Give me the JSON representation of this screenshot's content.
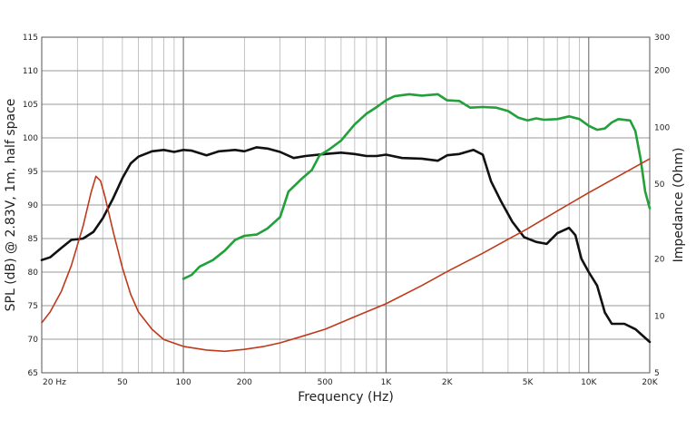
{
  "chart_data": {
    "type": "line",
    "title": "",
    "xlabel": "Frequency (Hz)",
    "ylabel": "SPL (dB) @ 2.83V, 1m, half space",
    "y2label": "Impedance (Ohm)",
    "xscale": "log",
    "y2scale": "log",
    "xlim": [
      20,
      20000
    ],
    "ylim": [
      65,
      115
    ],
    "y2lim": [
      5,
      300
    ],
    "grid": true,
    "legend": "none",
    "x_ticks": [
      {
        "value": 20,
        "label": "20  Hz"
      },
      {
        "value": 50,
        "label": "50"
      },
      {
        "value": 100,
        "label": "100"
      },
      {
        "value": 200,
        "label": "200"
      },
      {
        "value": 500,
        "label": "500"
      },
      {
        "value": 1000,
        "label": "1K"
      },
      {
        "value": 2000,
        "label": "2K"
      },
      {
        "value": 5000,
        "label": "5K"
      },
      {
        "value": 10000,
        "label": "10K"
      },
      {
        "value": 20000,
        "label": "20K"
      }
    ],
    "y_ticks": [
      {
        "value": 65,
        "label": "65"
      },
      {
        "value": 70,
        "label": "70"
      },
      {
        "value": 75,
        "label": "75"
      },
      {
        "value": 80,
        "label": "80"
      },
      {
        "value": 85,
        "label": "85"
      },
      {
        "value": 90,
        "label": "90"
      },
      {
        "value": 95,
        "label": "95"
      },
      {
        "value": 100,
        "label": "100"
      },
      {
        "value": 105,
        "label": "105"
      },
      {
        "value": 110,
        "label": "110"
      },
      {
        "value": 115,
        "label": "115"
      }
    ],
    "y2_ticks": [
      {
        "value": 5,
        "label": "5"
      },
      {
        "value": 10,
        "label": "10"
      },
      {
        "value": 20,
        "label": "20"
      },
      {
        "value": 50,
        "label": "50"
      },
      {
        "value": 100,
        "label": "100"
      },
      {
        "value": 200,
        "label": "200"
      },
      {
        "value": 300,
        "label": "300"
      }
    ],
    "series": [
      {
        "color": "#111111",
        "axis": "left",
        "points": [
          [
            20,
            81.8
          ],
          [
            22,
            82.2
          ],
          [
            25,
            83.6
          ],
          [
            28,
            84.8
          ],
          [
            32,
            85.0
          ],
          [
            36,
            86.0
          ],
          [
            40,
            88.0
          ],
          [
            45,
            91.0
          ],
          [
            50,
            94.0
          ],
          [
            55,
            96.2
          ],
          [
            60,
            97.2
          ],
          [
            70,
            98.0
          ],
          [
            80,
            98.2
          ],
          [
            90,
            97.9
          ],
          [
            100,
            98.2
          ],
          [
            110,
            98.1
          ],
          [
            130,
            97.4
          ],
          [
            150,
            98.0
          ],
          [
            180,
            98.2
          ],
          [
            200,
            98.0
          ],
          [
            230,
            98.6
          ],
          [
            260,
            98.4
          ],
          [
            300,
            97.9
          ],
          [
            350,
            97.0
          ],
          [
            400,
            97.3
          ],
          [
            500,
            97.6
          ],
          [
            600,
            97.8
          ],
          [
            700,
            97.6
          ],
          [
            800,
            97.3
          ],
          [
            900,
            97.3
          ],
          [
            1000,
            97.5
          ],
          [
            1200,
            97.0
          ],
          [
            1500,
            96.9
          ],
          [
            1800,
            96.6
          ],
          [
            2000,
            97.4
          ],
          [
            2300,
            97.6
          ],
          [
            2700,
            98.2
          ],
          [
            3000,
            97.5
          ],
          [
            3300,
            93.5
          ],
          [
            3700,
            90.5
          ],
          [
            4200,
            87.5
          ],
          [
            4800,
            85.2
          ],
          [
            5500,
            84.5
          ],
          [
            6200,
            84.2
          ],
          [
            7000,
            85.8
          ],
          [
            8000,
            86.6
          ],
          [
            8600,
            85.5
          ],
          [
            9200,
            82.0
          ],
          [
            10000,
            80.0
          ],
          [
            11000,
            78.0
          ],
          [
            12000,
            74.0
          ],
          [
            13000,
            72.3
          ],
          [
            15000,
            72.3
          ],
          [
            17000,
            71.5
          ],
          [
            20000,
            69.6
          ]
        ]
      },
      {
        "color": "#22a03a",
        "axis": "left",
        "points": [
          [
            100,
            79.0
          ],
          [
            110,
            79.6
          ],
          [
            120,
            80.8
          ],
          [
            140,
            81.8
          ],
          [
            160,
            83.2
          ],
          [
            180,
            84.8
          ],
          [
            200,
            85.4
          ],
          [
            230,
            85.6
          ],
          [
            260,
            86.5
          ],
          [
            300,
            88.2
          ],
          [
            330,
            92.0
          ],
          [
            380,
            93.8
          ],
          [
            430,
            95.2
          ],
          [
            470,
            97.4
          ],
          [
            520,
            98.2
          ],
          [
            600,
            99.6
          ],
          [
            700,
            102.0
          ],
          [
            800,
            103.6
          ],
          [
            900,
            104.6
          ],
          [
            1000,
            105.6
          ],
          [
            1100,
            106.2
          ],
          [
            1300,
            106.5
          ],
          [
            1500,
            106.3
          ],
          [
            1800,
            106.5
          ],
          [
            2000,
            105.6
          ],
          [
            2300,
            105.5
          ],
          [
            2600,
            104.5
          ],
          [
            3000,
            104.6
          ],
          [
            3500,
            104.5
          ],
          [
            4000,
            104.0
          ],
          [
            4500,
            103.0
          ],
          [
            5000,
            102.6
          ],
          [
            5500,
            102.9
          ],
          [
            6000,
            102.7
          ],
          [
            7000,
            102.8
          ],
          [
            8000,
            103.2
          ],
          [
            9000,
            102.8
          ],
          [
            10000,
            101.8
          ],
          [
            11000,
            101.2
          ],
          [
            12000,
            101.4
          ],
          [
            13000,
            102.3
          ],
          [
            14000,
            102.8
          ],
          [
            16000,
            102.6
          ],
          [
            17000,
            101.0
          ],
          [
            18000,
            97.0
          ],
          [
            19000,
            92.0
          ],
          [
            20000,
            89.5
          ]
        ]
      },
      {
        "color": "#c0391b",
        "axis": "right",
        "points": [
          [
            20,
            9.2
          ],
          [
            22,
            10.5
          ],
          [
            25,
            13.5
          ],
          [
            28,
            18.5
          ],
          [
            32,
            30.0
          ],
          [
            35,
            45.0
          ],
          [
            37,
            55.0
          ],
          [
            39,
            52.0
          ],
          [
            41,
            43.0
          ],
          [
            45,
            28.0
          ],
          [
            50,
            18.0
          ],
          [
            55,
            13.0
          ],
          [
            60,
            10.5
          ],
          [
            70,
            8.5
          ],
          [
            80,
            7.5
          ],
          [
            100,
            6.9
          ],
          [
            130,
            6.6
          ],
          [
            160,
            6.5
          ],
          [
            200,
            6.65
          ],
          [
            250,
            6.9
          ],
          [
            300,
            7.2
          ],
          [
            400,
            7.9
          ],
          [
            500,
            8.5
          ],
          [
            700,
            9.9
          ],
          [
            1000,
            11.6
          ],
          [
            1500,
            14.5
          ],
          [
            2000,
            17.2
          ],
          [
            3000,
            21.5
          ],
          [
            4000,
            25.5
          ],
          [
            5000,
            29.0
          ],
          [
            7000,
            36.0
          ],
          [
            10000,
            45.0
          ],
          [
            14000,
            55.0
          ],
          [
            20000,
            68.0
          ]
        ]
      }
    ]
  }
}
